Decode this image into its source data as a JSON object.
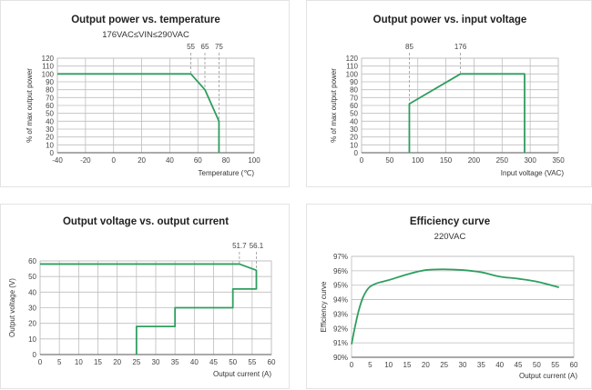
{
  "colors": {
    "series": "#2f9e5f",
    "grid": "#bdbdbd",
    "axis": "#555555",
    "guide": "#999999"
  },
  "chart_data": [
    {
      "type": "line",
      "title": "Output power vs. temperature",
      "subtitle": "176VAC≤VIN≤290VAC",
      "xlabel": "Temperature (℃)",
      "ylabel": "% of max output power",
      "xlim": [
        -40,
        100
      ],
      "ylim": [
        0,
        120
      ],
      "xticks": [
        -40,
        -20,
        0,
        20,
        40,
        60,
        80,
        100
      ],
      "yticks": [
        0,
        10,
        20,
        30,
        40,
        50,
        60,
        70,
        80,
        90,
        100,
        110,
        120
      ],
      "xtick_labels": [
        "-40",
        "-20",
        "0",
        "20",
        "40",
        "60",
        "80",
        "100"
      ],
      "ytick_labels": [
        "0",
        "10",
        "20",
        "30",
        "40",
        "50",
        "60",
        "70",
        "80",
        "90",
        "100",
        "110",
        "120"
      ],
      "grid": {
        "x": true,
        "y": true
      },
      "series": [
        {
          "x": [
            -40,
            55,
            65,
            75,
            75
          ],
          "y": [
            100,
            100,
            80,
            40,
            0
          ]
        }
      ],
      "annotations": [
        {
          "x": 55,
          "text": "55"
        },
        {
          "x": 65,
          "text": "65"
        },
        {
          "x": 75,
          "text": "75"
        }
      ]
    },
    {
      "type": "line",
      "title": "Output power vs. input voltage",
      "subtitle": "",
      "xlabel": "Input voltage (VAC)",
      "ylabel": "% of max output power",
      "xlim": [
        0,
        350
      ],
      "ylim": [
        0,
        120
      ],
      "xticks": [
        0,
        50,
        100,
        150,
        200,
        250,
        300,
        350
      ],
      "yticks": [
        0,
        10,
        20,
        30,
        40,
        50,
        60,
        70,
        80,
        90,
        100,
        110,
        120
      ],
      "xtick_labels": [
        "0",
        "50",
        "100",
        "150",
        "200",
        "250",
        "300",
        "350"
      ],
      "ytick_labels": [
        "0",
        "10",
        "20",
        "30",
        "40",
        "50",
        "60",
        "70",
        "80",
        "90",
        "100",
        "110",
        "120"
      ],
      "grid": {
        "x": true,
        "y": true
      },
      "series": [
        {
          "x": [
            85,
            85,
            176,
            290,
            290
          ],
          "y": [
            0,
            62,
            100,
            100,
            0
          ]
        }
      ],
      "annotations": [
        {
          "x": 85,
          "text": "85"
        },
        {
          "x": 176,
          "text": "176"
        }
      ]
    },
    {
      "type": "line",
      "title": "Output voltage vs. output current",
      "subtitle": "",
      "xlabel": "Output current (A)",
      "ylabel": "Output voltage (V)",
      "xlim": [
        0,
        60
      ],
      "ylim": [
        0,
        60
      ],
      "xticks": [
        0,
        5,
        10,
        15,
        20,
        25,
        30,
        35,
        40,
        45,
        50,
        55,
        60
      ],
      "yticks": [
        0,
        10,
        20,
        30,
        40,
        50,
        60
      ],
      "xtick_labels": [
        "0",
        "5",
        "10",
        "15",
        "20",
        "25",
        "30",
        "35",
        "40",
        "45",
        "50",
        "55",
        "60"
      ],
      "ytick_labels": [
        "0",
        "10",
        "20",
        "30",
        "40",
        "50",
        "60"
      ],
      "grid": {
        "x": true,
        "y": true
      },
      "series": [
        {
          "x": [
            0,
            51.7,
            56.1,
            56.1,
            50,
            50,
            35,
            35,
            25,
            25
          ],
          "y": [
            58,
            58,
            54,
            42,
            42,
            30,
            30,
            18,
            18,
            0
          ]
        }
      ],
      "annotations": [
        {
          "x": 51.7,
          "text": "51.7"
        },
        {
          "x": 56.1,
          "text": "56.1"
        }
      ]
    },
    {
      "type": "line",
      "title": "Efficiency curve",
      "subtitle": "220VAC",
      "xlabel": "Output current (A)",
      "ylabel": "Efficiency curve",
      "xlim": [
        0,
        60
      ],
      "ylim": [
        90,
        97
      ],
      "xticks": [
        0,
        5,
        10,
        15,
        20,
        25,
        30,
        35,
        40,
        45,
        50,
        55,
        60
      ],
      "yticks": [
        90,
        91,
        92,
        93,
        94,
        95,
        96,
        97
      ],
      "xtick_labels": [
        "0",
        "5",
        "10",
        "15",
        "20",
        "25",
        "30",
        "35",
        "40",
        "45",
        "50",
        "55",
        "60"
      ],
      "ytick_labels": [
        "90%",
        "91%",
        "92%",
        "93%",
        "94%",
        "95%",
        "96%",
        "97%"
      ],
      "grid": {
        "x": false,
        "y": true
      },
      "series": [
        {
          "x": [
            0,
            1,
            2,
            3,
            4,
            5,
            7,
            10,
            15,
            20,
            25,
            30,
            35,
            40,
            45,
            50,
            56
          ],
          "y": [
            90.9,
            92.2,
            93.3,
            94.1,
            94.6,
            94.9,
            95.15,
            95.35,
            95.75,
            96.05,
            96.1,
            96.05,
            95.9,
            95.6,
            95.45,
            95.25,
            94.85
          ]
        }
      ],
      "annotations": []
    }
  ]
}
